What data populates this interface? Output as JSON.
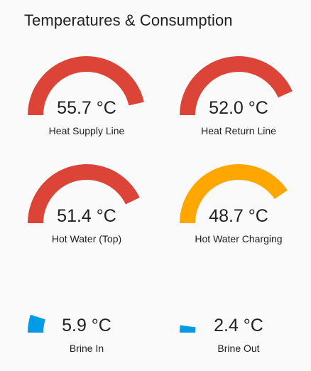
{
  "card": {
    "title": "Temperatures & Consumption"
  },
  "scale": {
    "min": 0,
    "max": 60
  },
  "gauges": [
    {
      "name": "Heat Supply Line",
      "value": 55.7,
      "display": "55.7 °C",
      "color": "#db4437"
    },
    {
      "name": "Heat Return Line",
      "value": 52.0,
      "display": "52.0 °C",
      "color": "#db4437"
    },
    {
      "name": "Hot Water (Top)",
      "value": 51.4,
      "display": "51.4 °C",
      "color": "#db4437"
    },
    {
      "name": "Hot Water Charging",
      "value": 48.7,
      "display": "48.7 °C",
      "color": "#ffa600"
    },
    {
      "name": "Brine In",
      "value": 5.9,
      "display": "5.9 °C",
      "color": "#039be5"
    },
    {
      "name": "Brine Out",
      "value": 2.4,
      "display": "2.4 °C",
      "color": "#039be5"
    }
  ]
}
